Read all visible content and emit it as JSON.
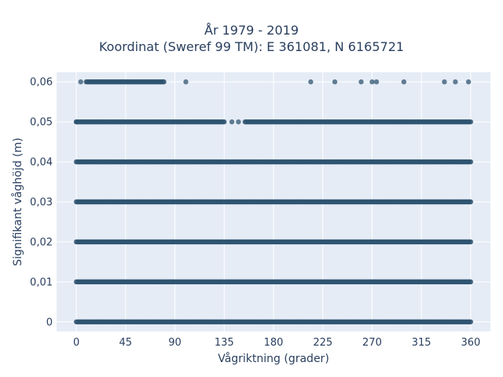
{
  "chart_data": {
    "type": "scatter",
    "title": "År 1979 - 2019",
    "subtitle": "Koordinat (Sweref 99 TM): E 361081, N 6165721",
    "xlabel": "Vågriktning (grader)",
    "ylabel": "Signifikant våghöjd (m)",
    "xlim": [
      -18,
      378
    ],
    "ylim": [
      -0.0024,
      0.0624
    ],
    "xticks": [
      0,
      45,
      90,
      135,
      180,
      225,
      270,
      315,
      360
    ],
    "xtick_labels": [
      "0",
      "45",
      "90",
      "135",
      "180",
      "225",
      "270",
      "315",
      "360"
    ],
    "yticks": [
      0,
      0.01,
      0.02,
      0.03,
      0.04,
      0.05,
      0.06
    ],
    "ytick_labels": [
      "0",
      "0,01",
      "0,02",
      "0,03",
      "0,04",
      "0,05",
      "0,06"
    ],
    "grid": true,
    "marker_color": "#2f5470",
    "background_color": "#e5ecf6",
    "bands": [
      {
        "y": 0.06,
        "segments": [
          [
            9,
            80
          ]
        ],
        "points": [
          4,
          100,
          214,
          236,
          260,
          270,
          274,
          299,
          336,
          346,
          358
        ]
      },
      {
        "y": 0.05,
        "segments": [
          [
            0,
            135
          ],
          [
            154,
            360
          ]
        ],
        "points": [
          0,
          142,
          148
        ]
      },
      {
        "y": 0.04,
        "segments": [
          [
            0,
            360
          ]
        ],
        "points": []
      },
      {
        "y": 0.03,
        "segments": [
          [
            0,
            360
          ]
        ],
        "points": []
      },
      {
        "y": 0.02,
        "segments": [
          [
            0,
            360
          ]
        ],
        "points": []
      },
      {
        "y": 0.01,
        "segments": [
          [
            0,
            360
          ]
        ],
        "points": []
      },
      {
        "y": 0,
        "segments": [
          [
            0,
            360
          ]
        ],
        "points": []
      }
    ]
  }
}
